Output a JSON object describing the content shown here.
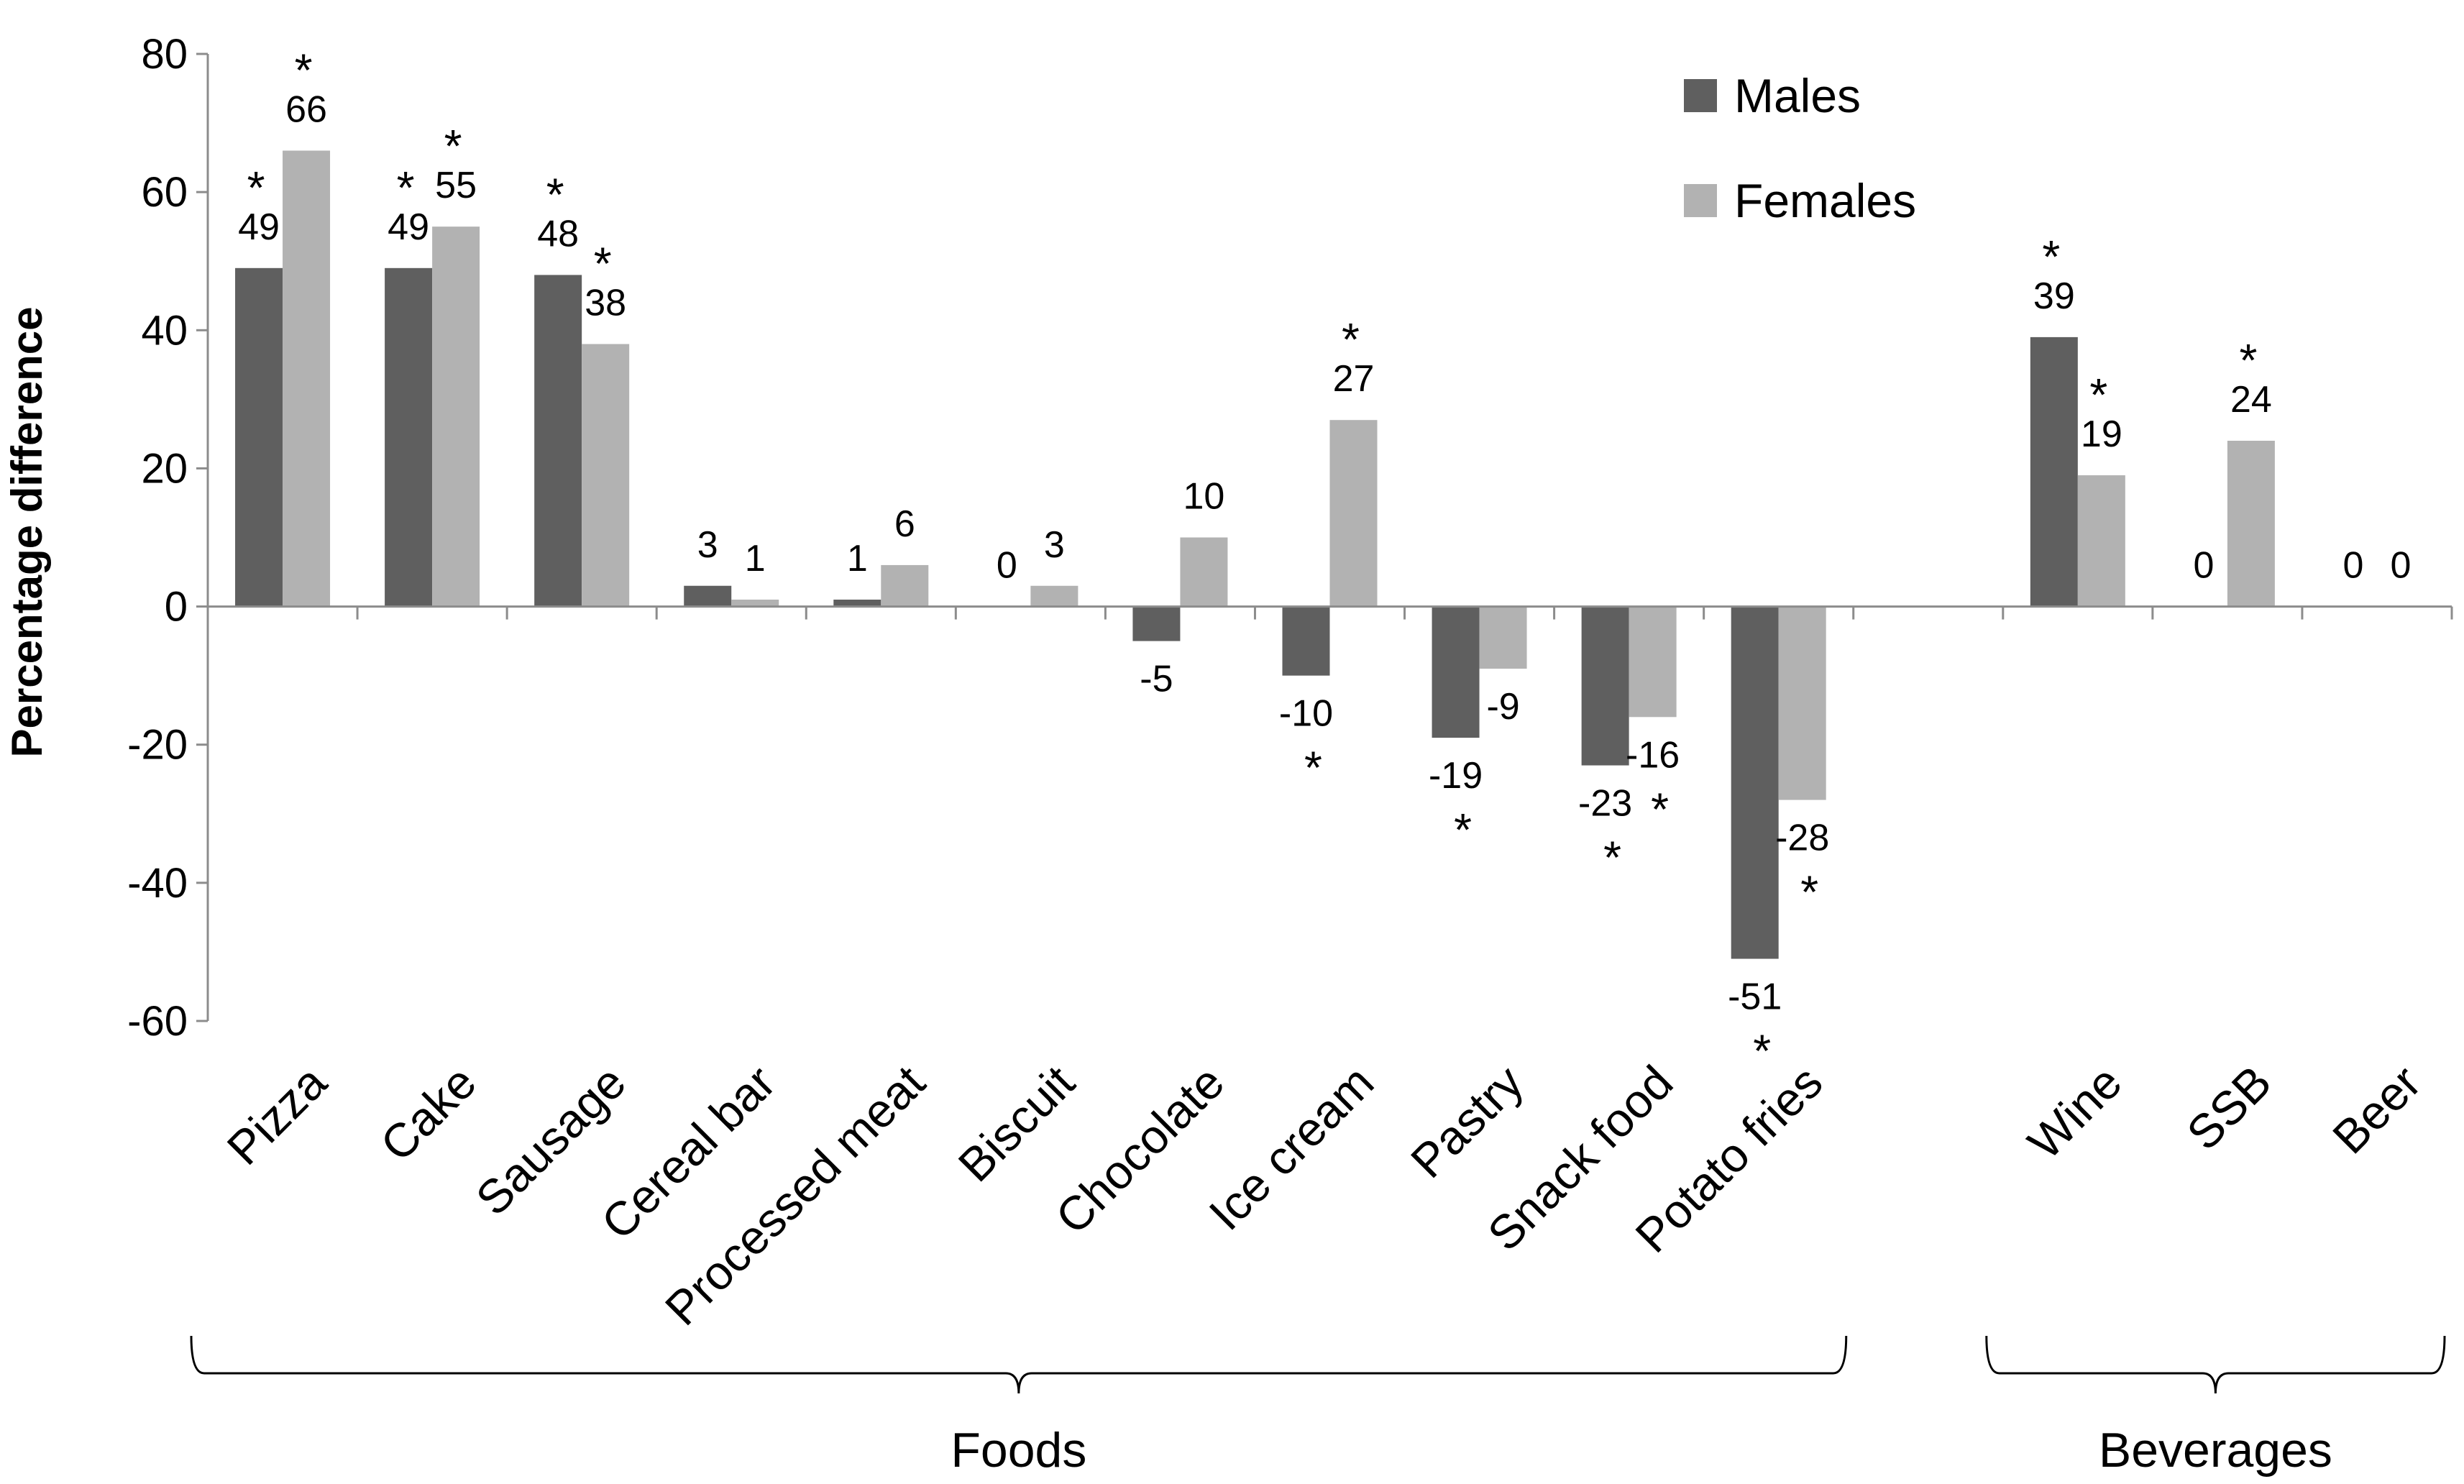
{
  "chart_data": {
    "type": "bar",
    "title": "",
    "xlabel": "",
    "ylabel": "Percentage difference",
    "ylim": [
      -60,
      80
    ],
    "yticks": [
      80,
      60,
      40,
      20,
      0,
      -20,
      -40,
      -60
    ],
    "grid": false,
    "legend_position": "top-right",
    "categories": [
      "Pizza",
      "Cake",
      "Sausage",
      "Cereal bar",
      "Processed meat",
      "Biscuit",
      "Chocolate",
      "Ice cream",
      "Pastry",
      "Snack food",
      "Potato fries",
      "",
      "Wine",
      "SSB",
      "Beer"
    ],
    "series": [
      {
        "name": "Males",
        "color": "#5f5f5f",
        "values": [
          49,
          49,
          48,
          3,
          1,
          0,
          -5,
          -10,
          -19,
          -23,
          -51,
          null,
          39,
          0,
          0
        ],
        "labels": [
          "49",
          "49",
          "48",
          "3",
          "1",
          "0",
          "-5",
          "-10",
          "-19",
          "-23",
          "-51",
          "",
          "39",
          "0",
          "0"
        ],
        "significant": [
          true,
          true,
          true,
          false,
          false,
          false,
          false,
          true,
          true,
          true,
          true,
          false,
          true,
          false,
          false
        ]
      },
      {
        "name": "Females",
        "color": "#b2b2b2",
        "values": [
          66,
          55,
          38,
          1,
          6,
          3,
          10,
          27,
          -9,
          -16,
          -28,
          null,
          19,
          24,
          0
        ],
        "labels": [
          "66",
          "55",
          "38",
          "1",
          "6",
          "3",
          "10",
          "27",
          "-9",
          "-16",
          "-28",
          "",
          "19",
          "24",
          "0"
        ],
        "significant": [
          true,
          true,
          true,
          false,
          false,
          false,
          false,
          true,
          false,
          true,
          true,
          false,
          true,
          true,
          false
        ]
      }
    ],
    "significance_marker": "*",
    "groups": [
      {
        "label": "Foods",
        "from": 0,
        "to": 10
      },
      {
        "label": "Beverages",
        "from": 12,
        "to": 14
      }
    ]
  }
}
